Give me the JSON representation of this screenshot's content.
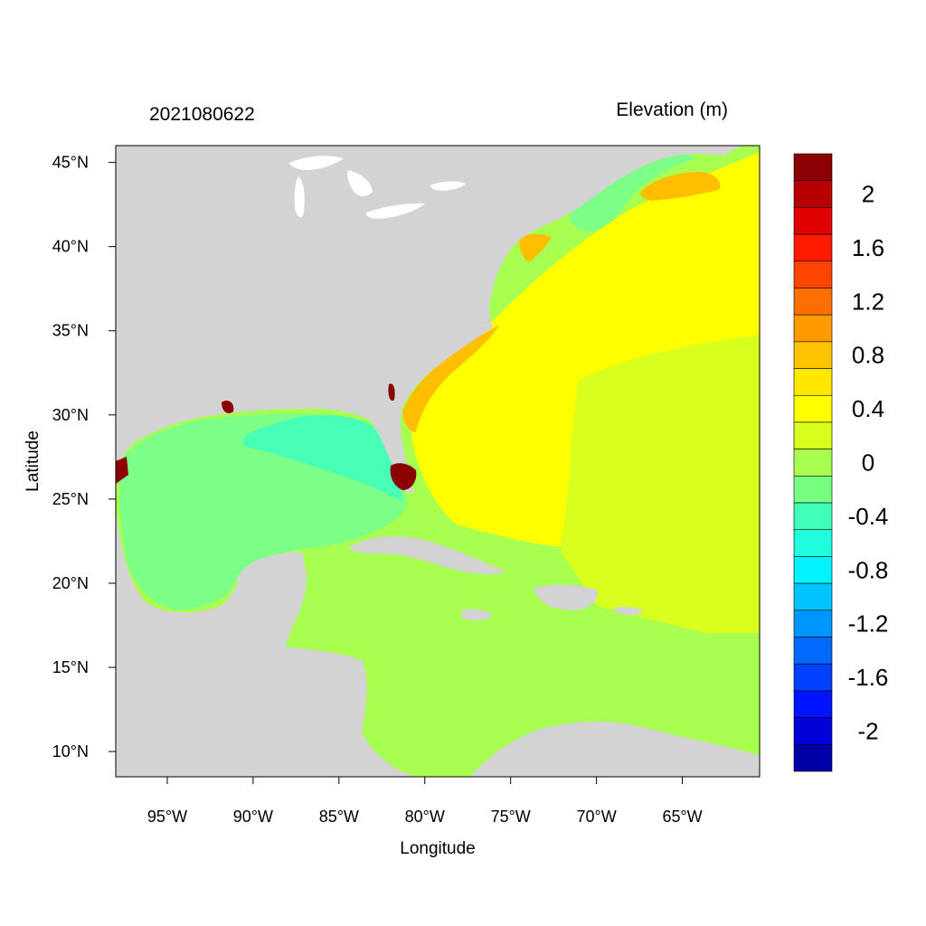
{
  "header": {
    "timestamp": "2021080622",
    "variable": "Elevation (m)"
  },
  "axes": {
    "xlabel": "Longitude",
    "ylabel": "Latitude",
    "xlim": [
      -98,
      -60.5
    ],
    "ylim": [
      8.5,
      46
    ],
    "xticks": [
      {
        "value": -95,
        "label": "95°W"
      },
      {
        "value": -90,
        "label": "90°W"
      },
      {
        "value": -85,
        "label": "85°W"
      },
      {
        "value": -80,
        "label": "80°W"
      },
      {
        "value": -75,
        "label": "75°W"
      },
      {
        "value": -70,
        "label": "70°W"
      },
      {
        "value": -65,
        "label": "65°W"
      }
    ],
    "yticks": [
      {
        "value": 45,
        "label": "45°N"
      },
      {
        "value": 40,
        "label": "40°N"
      },
      {
        "value": 35,
        "label": "35°N"
      },
      {
        "value": 30,
        "label": "30°N"
      },
      {
        "value": 25,
        "label": "25°N"
      },
      {
        "value": 20,
        "label": "20°N"
      },
      {
        "value": 15,
        "label": "15°N"
      },
      {
        "value": 10,
        "label": "10°N"
      }
    ]
  },
  "colorbar": {
    "levels": [
      {
        "color": "#8b0000",
        "label": ""
      },
      {
        "color": "#b80000",
        "label": "2"
      },
      {
        "color": "#e00000",
        "label": ""
      },
      {
        "color": "#ff1a00",
        "label": "1.6"
      },
      {
        "color": "#ff4400",
        "label": ""
      },
      {
        "color": "#ff6e00",
        "label": "1.2"
      },
      {
        "color": "#ff9a00",
        "label": ""
      },
      {
        "color": "#ffc400",
        "label": "0.8"
      },
      {
        "color": "#ffe800",
        "label": ""
      },
      {
        "color": "#ffff00",
        "label": "0.4"
      },
      {
        "color": "#d8ff1e",
        "label": ""
      },
      {
        "color": "#a8ff50",
        "label": "0"
      },
      {
        "color": "#78ff82",
        "label": ""
      },
      {
        "color": "#40ffb8",
        "label": "-0.4"
      },
      {
        "color": "#20ffde",
        "label": ""
      },
      {
        "color": "#00f4ff",
        "label": "-0.8"
      },
      {
        "color": "#00c4ff",
        "label": ""
      },
      {
        "color": "#0096ff",
        "label": "-1.2"
      },
      {
        "color": "#006aff",
        "label": ""
      },
      {
        "color": "#0040ff",
        "label": "-1.6"
      },
      {
        "color": "#0014ff",
        "label": ""
      },
      {
        "color": "#0000d8",
        "label": "-2"
      },
      {
        "color": "#0000a8",
        "label": ""
      }
    ]
  },
  "map_colors": {
    "land": "#d3d3d3",
    "gulf": "#7dff88",
    "gulf_east": "#48ffb8",
    "atlantic_north": "#ffff00",
    "atlantic_east": "#d8ff1e",
    "caribbean": "#a8ff50",
    "surge_high": "#ffbf00",
    "surge_extreme": "#8b0000"
  }
}
